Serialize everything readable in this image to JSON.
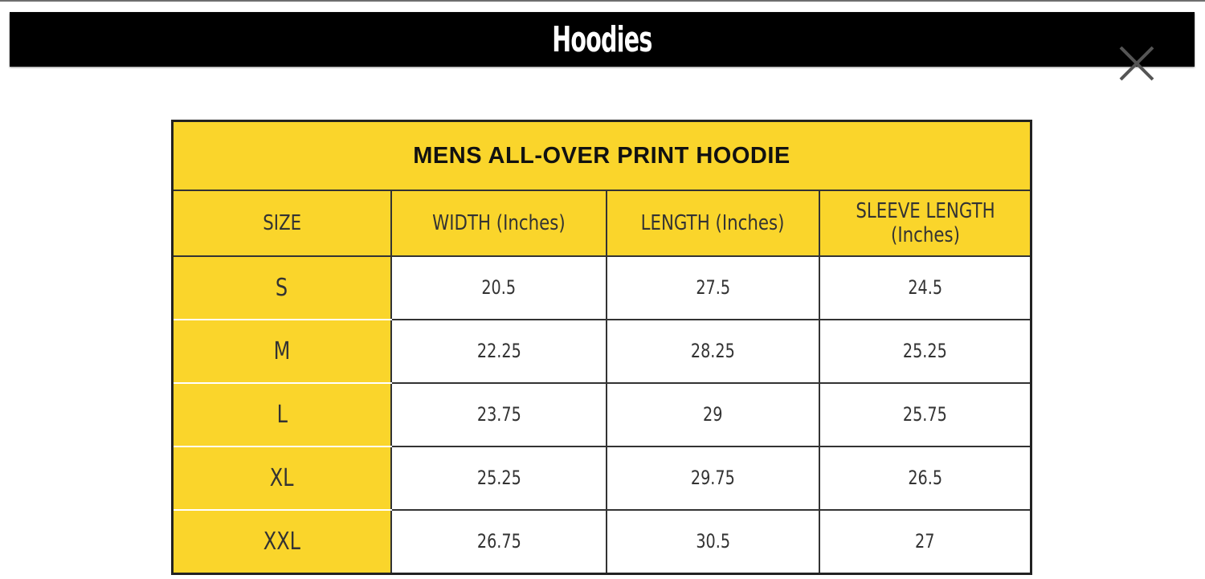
{
  "header": {
    "title": "Hoodies",
    "close_icon": "close-x-icon"
  },
  "table": {
    "title": "MENS ALL-OVER PRINT HOODIE",
    "columns": [
      "SIZE",
      "WIDTH (Inches)",
      "LENGTH (Inches)",
      "SLEEVE LENGTH (Inches)"
    ],
    "rows": [
      {
        "size": "S",
        "width": "20.5",
        "length": "27.5",
        "sleeve": "24.5"
      },
      {
        "size": "M",
        "width": "22.25",
        "length": "28.25",
        "sleeve": "25.25"
      },
      {
        "size": "L",
        "width": "23.75",
        "length": "29",
        "sleeve": "25.75"
      },
      {
        "size": "XL",
        "width": "25.25",
        "length": "29.75",
        "sleeve": "26.5"
      },
      {
        "size": "XXL",
        "width": "26.75",
        "length": "30.5",
        "sleeve": "27"
      }
    ]
  },
  "colors": {
    "accent": "#fad52b",
    "banner": "#000000"
  }
}
